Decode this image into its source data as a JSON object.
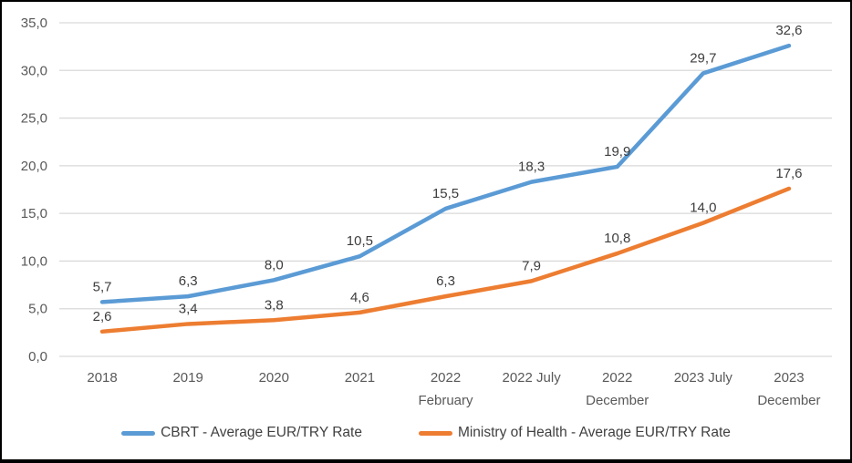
{
  "frame": {
    "background": "#ffffff",
    "border_color": "#000000"
  },
  "chart_data": {
    "type": "line",
    "title": "",
    "xlabel": "",
    "ylabel": "",
    "categories": [
      "2018",
      "2019",
      "2020",
      "2021",
      "2022\nFebruary",
      "2022 July",
      "2022\nDecember",
      "2023 July",
      "2023\nDecember"
    ],
    "series": [
      {
        "id": "cbrt",
        "name": "CBRT - Average EUR/TRY Rate",
        "color": "#5B9BD5",
        "values": [
          5.7,
          6.3,
          8.0,
          10.5,
          15.5,
          18.3,
          19.9,
          29.7,
          32.6
        ],
        "labels": [
          "5,7",
          "6,3",
          "8,0",
          "10,5",
          "15,5",
          "18,3",
          "19,9",
          "29,7",
          "32,6"
        ]
      },
      {
        "id": "ministry-of-health",
        "name": "Ministry of Health - Average EUR/TRY Rate",
        "color": "#ED7D31",
        "values": [
          2.6,
          3.4,
          3.8,
          4.6,
          6.3,
          7.9,
          10.8,
          14.0,
          17.6
        ],
        "labels": [
          "2,6",
          "3,4",
          "3,8",
          "4,6",
          "6,3",
          "7,9",
          "10,8",
          "14,0",
          "17,6"
        ]
      }
    ],
    "ylim": [
      0,
      35
    ],
    "ytick_step": 5,
    "ytick_labels": [
      "0,0",
      "5,0",
      "10,0",
      "15,0",
      "20,0",
      "25,0",
      "30,0",
      "35,0"
    ],
    "decimal_separator": ",",
    "grid": true,
    "grid_color": "#D9D9D9",
    "tick_color": "#595959",
    "data_label_color": "#3d3d3d",
    "legend_position": "bottom",
    "line_width": 4.5
  }
}
